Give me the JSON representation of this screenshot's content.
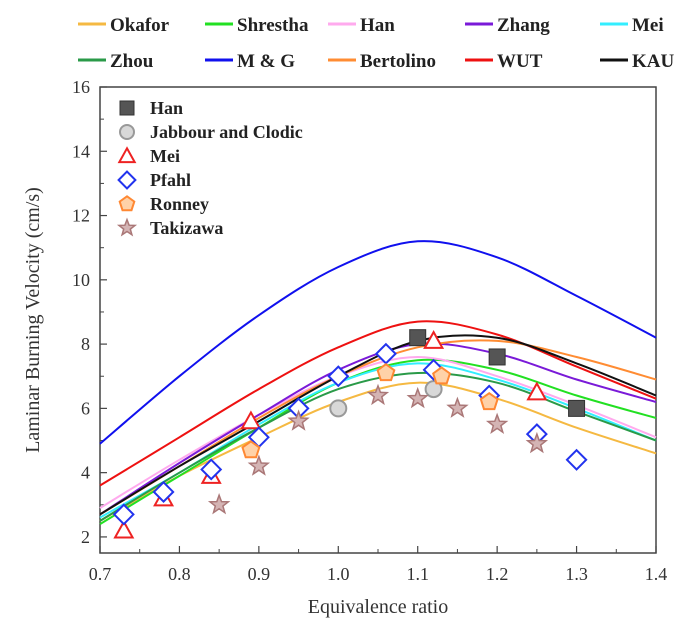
{
  "chart_data": {
    "type": "line",
    "xlabel": "Equivalence ratio",
    "ylabel": "Laminar Burning Velocity (cm/s)",
    "xlim": [
      0.7,
      1.4
    ],
    "ylim": [
      1.5,
      16
    ],
    "x_ticks": [
      "0.7",
      "0.8",
      "0.9",
      "1.0",
      "1.1",
      "1.2",
      "1.3",
      "1.4"
    ],
    "y_ticks": [
      "2",
      "4",
      "6",
      "8",
      "10",
      "12",
      "14",
      "16"
    ],
    "grid": false,
    "model_legend_placement": "top-outside",
    "experiment_legend_placement": "top-left-inside",
    "series": [
      {
        "name": "Okafor",
        "color": "#f5b942",
        "x": [
          0.7,
          0.8,
          0.9,
          1.0,
          1.1,
          1.2,
          1.3,
          1.4
        ],
        "values": [
          2.5,
          3.9,
          5.1,
          6.2,
          6.8,
          6.3,
          5.4,
          4.6
        ]
      },
      {
        "name": "Shrestha",
        "color": "#22e022",
        "x": [
          0.7,
          0.8,
          0.9,
          1.0,
          1.1,
          1.2,
          1.3,
          1.4
        ],
        "values": [
          2.4,
          3.9,
          5.4,
          6.8,
          7.5,
          7.2,
          6.4,
          5.7
        ]
      },
      {
        "name": "Han",
        "color": "#ffaaee",
        "x": [
          0.7,
          0.8,
          0.9,
          1.0,
          1.1,
          1.2,
          1.3,
          1.4
        ],
        "values": [
          2.9,
          4.4,
          5.8,
          7.0,
          7.6,
          7.0,
          6.1,
          5.1
        ]
      },
      {
        "name": "Zhang",
        "color": "#7a1ad8",
        "x": [
          0.7,
          0.8,
          0.9,
          1.0,
          1.1,
          1.2,
          1.3,
          1.4
        ],
        "values": [
          2.7,
          4.3,
          5.8,
          7.2,
          8.0,
          7.7,
          6.9,
          6.2
        ]
      },
      {
        "name": "Mei",
        "color": "#33eeff",
        "x": [
          0.7,
          0.8,
          0.9,
          1.0,
          1.1,
          1.2,
          1.3,
          1.4
        ],
        "values": [
          2.6,
          4.0,
          5.5,
          6.8,
          7.4,
          6.9,
          6.0,
          5.0
        ]
      },
      {
        "name": "Zhou",
        "color": "#2a9a48",
        "x": [
          0.7,
          0.8,
          0.9,
          1.0,
          1.1,
          1.2,
          1.3,
          1.4
        ],
        "values": [
          2.5,
          4.0,
          5.4,
          6.6,
          7.1,
          6.8,
          5.9,
          5.0
        ]
      },
      {
        "name": "M & G",
        "color": "#1010ee",
        "x": [
          0.7,
          0.8,
          0.9,
          1.0,
          1.1,
          1.2,
          1.3,
          1.4
        ],
        "values": [
          4.9,
          7.0,
          8.9,
          10.4,
          11.2,
          10.7,
          9.5,
          8.2
        ]
      },
      {
        "name": "Bertolino",
        "color": "#ff8c33",
        "x": [
          0.7,
          0.8,
          0.9,
          1.0,
          1.1,
          1.2,
          1.3,
          1.4
        ],
        "values": [
          2.7,
          4.2,
          5.7,
          7.0,
          7.9,
          8.1,
          7.6,
          6.9
        ]
      },
      {
        "name": "WUT",
        "color": "#ee1111",
        "x": [
          0.7,
          0.8,
          0.9,
          1.0,
          1.1,
          1.2,
          1.3,
          1.4
        ],
        "values": [
          3.6,
          5.1,
          6.6,
          7.9,
          8.7,
          8.3,
          7.3,
          6.3
        ]
      },
      {
        "name": "KAU",
        "color": "#111111",
        "x": [
          0.7,
          0.8,
          0.9,
          1.0,
          1.1,
          1.2,
          1.3,
          1.4
        ],
        "values": [
          2.7,
          4.2,
          5.6,
          7.0,
          8.1,
          8.2,
          7.4,
          6.4
        ]
      }
    ],
    "experiments": [
      {
        "name": "Han",
        "marker": "square",
        "color": "#555555",
        "points": [
          [
            1.1,
            8.2
          ],
          [
            1.2,
            7.6
          ],
          [
            1.3,
            6.0
          ]
        ]
      },
      {
        "name": "Jabbour and Clodic",
        "marker": "circle",
        "color": "#999999",
        "points": [
          [
            1.0,
            6.0
          ],
          [
            1.12,
            6.6
          ]
        ]
      },
      {
        "name": "Mei",
        "marker": "triangle",
        "color": "#ee2222",
        "points": [
          [
            0.73,
            2.2
          ],
          [
            0.78,
            3.2
          ],
          [
            0.84,
            3.9
          ],
          [
            0.89,
            5.6
          ],
          [
            1.12,
            8.1
          ],
          [
            1.25,
            6.5
          ]
        ]
      },
      {
        "name": "Pfahl",
        "marker": "diamond",
        "color": "#2233ee",
        "points": [
          [
            0.73,
            2.7
          ],
          [
            0.78,
            3.4
          ],
          [
            0.84,
            4.1
          ],
          [
            0.9,
            5.1
          ],
          [
            0.95,
            6.0
          ],
          [
            1.0,
            7.0
          ],
          [
            1.06,
            7.7
          ],
          [
            1.12,
            7.2
          ],
          [
            1.19,
            6.4
          ],
          [
            1.25,
            5.2
          ],
          [
            1.3,
            4.4
          ]
        ]
      },
      {
        "name": "Ronney",
        "marker": "pentagon",
        "color": "#ff8833",
        "points": [
          [
            0.89,
            4.7
          ],
          [
            1.06,
            7.1
          ],
          [
            1.13,
            7.0
          ],
          [
            1.19,
            6.2
          ]
        ]
      },
      {
        "name": "Takizawa",
        "marker": "star",
        "color": "#aa7777",
        "points": [
          [
            0.85,
            3.0
          ],
          [
            0.9,
            4.2
          ],
          [
            0.95,
            5.6
          ],
          [
            1.05,
            6.4
          ],
          [
            1.1,
            6.3
          ],
          [
            1.15,
            6.0
          ],
          [
            1.2,
            5.5
          ],
          [
            1.25,
            4.9
          ]
        ]
      }
    ]
  }
}
